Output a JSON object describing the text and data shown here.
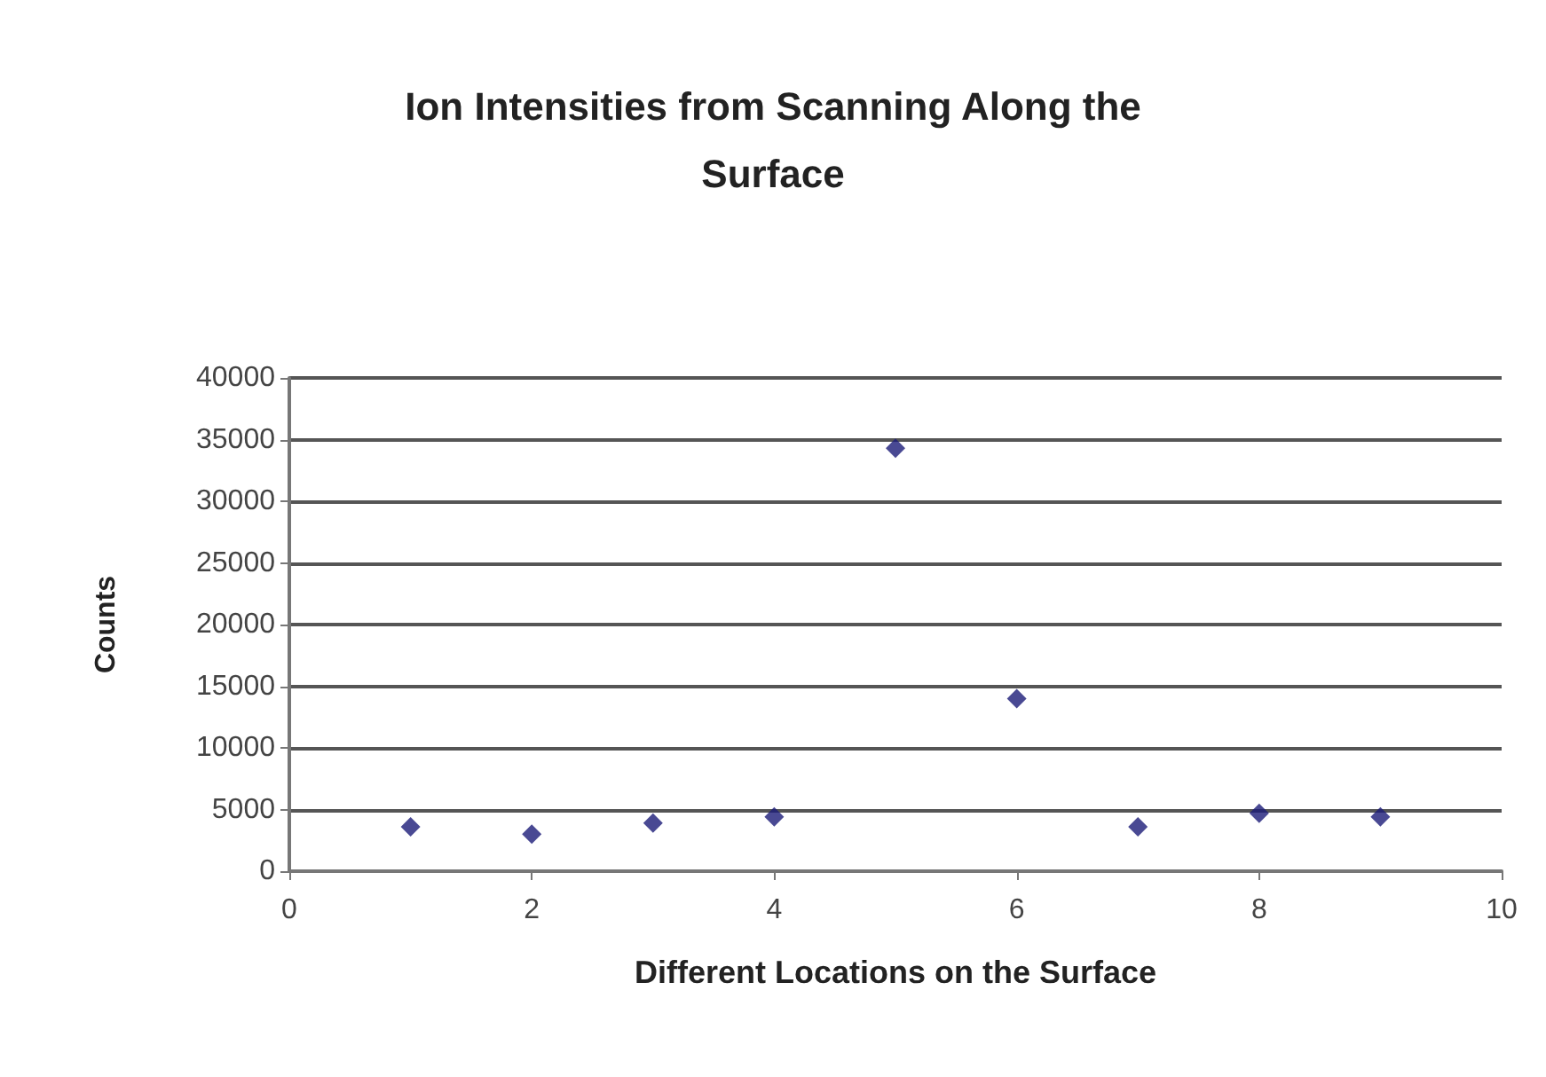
{
  "chart_data": {
    "type": "scatter",
    "title": "Ion Intensities from Scanning Along the\nSurface",
    "xlabel": "Different Locations on the Surface",
    "ylabel": "Counts",
    "x": [
      1,
      2,
      3,
      4,
      5,
      6,
      7,
      8,
      9
    ],
    "series": [
      {
        "color": "#1c1c78",
        "values": [
          3600,
          3000,
          3900,
          4400,
          34300,
          14000,
          3600,
          4700,
          4400
        ]
      }
    ],
    "xlim": [
      0,
      10
    ],
    "xticks": [
      0,
      2,
      4,
      6,
      8,
      10
    ],
    "ylim": [
      0,
      40000
    ],
    "yticks": [
      0,
      5000,
      10000,
      15000,
      20000,
      25000,
      30000,
      35000,
      40000
    ],
    "grid": "y",
    "marker": "diamond"
  }
}
